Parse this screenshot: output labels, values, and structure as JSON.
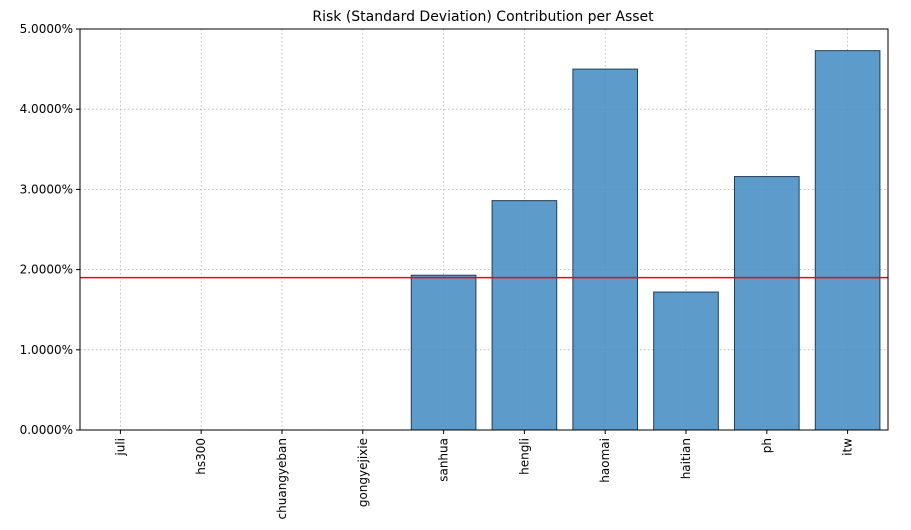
{
  "chart_data": {
    "type": "bar",
    "title": "Risk (Standard Deviation) Contribution per Asset",
    "xlabel": "",
    "ylabel": "",
    "categories": [
      "juli",
      "hs300",
      "chuangyeban",
      "gongyejixie",
      "sanhua",
      "hengli",
      "haomai",
      "haitian",
      "ph",
      "itw"
    ],
    "values": [
      0.0,
      0.0,
      0.0,
      0.0,
      1.93,
      2.86,
      4.5,
      1.72,
      3.16,
      4.73
    ],
    "unit": "%",
    "ylim": [
      0,
      5
    ],
    "yticks": [
      "0.0000%",
      "1.0000%",
      "2.0000%",
      "3.0000%",
      "4.0000%",
      "5.0000%"
    ],
    "reference_line": {
      "value": 1.9,
      "color": "#ff0000"
    },
    "grid": true,
    "bar_color": "#4a90c4",
    "bar_edge_color": "#1f3f5a"
  }
}
